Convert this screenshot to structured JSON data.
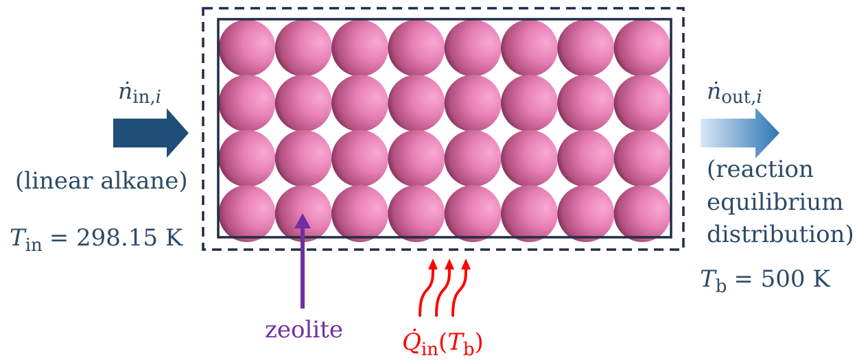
{
  "inlet": {
    "flow_symbol": "ṅ",
    "flow_subscript": "in,",
    "flow_index": "i",
    "description": "(linear alkane)",
    "temperature_symbol": "T",
    "temperature_subscript": "in",
    "temperature_value": "= 298.15 K"
  },
  "outlet": {
    "flow_symbol": "ṅ",
    "flow_subscript": "out,",
    "flow_index": "i",
    "description_line1": "(reaction",
    "description_line2": "equilibrium",
    "description_line3": "distribution)",
    "temperature_symbol": "T",
    "temperature_subscript": "b",
    "temperature_value": "= 500 K"
  },
  "zeolite_label": "zeolite",
  "heat": {
    "symbol": "Q̇",
    "subscript": "in",
    "argument_open": "(",
    "argument_symbol": "T",
    "argument_subscript": "b",
    "argument_close": ")"
  },
  "packing": {
    "rows": 4,
    "columns": 8
  },
  "colors": {
    "text": "#2c4a66",
    "arrow_in": "#1f4e79",
    "arrow_out_start": "#d9e8f6",
    "arrow_out_end": "#2e75b6",
    "bed_border": "#1f2d45",
    "sphere_light": "#f7a8d0",
    "sphere_mid": "#e77fb3",
    "sphere_dark": "#8c3a64",
    "zeolite": "#7030a0",
    "heat": "#ff0000"
  }
}
